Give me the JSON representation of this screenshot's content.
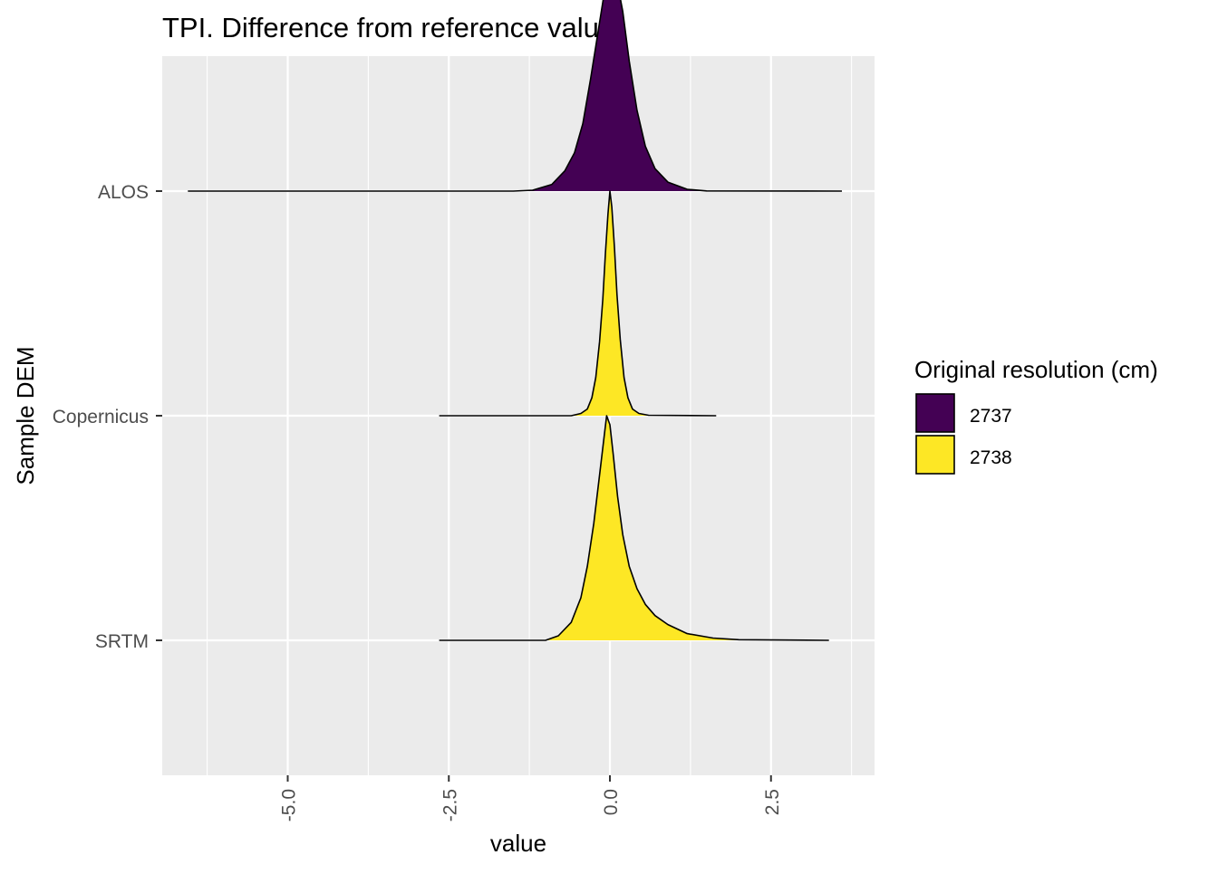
{
  "chart_data": {
    "type": "ridgeline",
    "title": "TPI. Difference from reference value",
    "xlabel": "value",
    "ylabel": "Sample DEM",
    "xlim": [
      -8.4,
      3.65
    ],
    "x_ticks": [
      -5.0,
      -2.5,
      0.0,
      2.5
    ],
    "x_tick_labels": [
      "-5.0",
      "-2.5",
      "0.0",
      "2.5"
    ],
    "x_tick_label_rotation": -90,
    "categories": [
      "ALOS",
      "Copernicus",
      "SRTM"
    ],
    "grid": true,
    "panel_background": "#ebebeb",
    "legend": {
      "title": "Original resolution (cm)",
      "placement": "right",
      "entries": [
        {
          "label": "2737",
          "color": "#440154"
        },
        {
          "label": "2738",
          "color": "#fde725"
        }
      ]
    },
    "series": [
      {
        "category": "ALOS",
        "group": "2737",
        "color": "#440154",
        "range": [
          -6.55,
          3.6
        ],
        "peak_x": 0.0,
        "density": [
          [
            -6.55,
            0
          ],
          [
            -1.5,
            0
          ],
          [
            -1.2,
            0.004
          ],
          [
            -0.9,
            0.03
          ],
          [
            -0.7,
            0.09
          ],
          [
            -0.55,
            0.17
          ],
          [
            -0.42,
            0.3
          ],
          [
            -0.3,
            0.5
          ],
          [
            -0.2,
            0.68
          ],
          [
            -0.1,
            0.86
          ],
          [
            0.0,
            1.0
          ],
          [
            0.1,
            0.95
          ],
          [
            0.2,
            0.8
          ],
          [
            0.3,
            0.58
          ],
          [
            0.42,
            0.36
          ],
          [
            0.55,
            0.2
          ],
          [
            0.7,
            0.1
          ],
          [
            0.9,
            0.04
          ],
          [
            1.2,
            0.008
          ],
          [
            1.5,
            0.001
          ],
          [
            3.6,
            0
          ]
        ]
      },
      {
        "category": "Copernicus",
        "group": "2738",
        "color": "#fde725",
        "range": [
          -2.65,
          1.65
        ],
        "peak_x": 0.0,
        "density": [
          [
            -2.65,
            0
          ],
          [
            -0.6,
            0
          ],
          [
            -0.45,
            0.01
          ],
          [
            -0.35,
            0.03
          ],
          [
            -0.28,
            0.08
          ],
          [
            -0.22,
            0.17
          ],
          [
            -0.16,
            0.33
          ],
          [
            -0.11,
            0.52
          ],
          [
            -0.07,
            0.72
          ],
          [
            -0.03,
            0.9
          ],
          [
            0.0,
            1.0
          ],
          [
            0.03,
            0.93
          ],
          [
            0.07,
            0.75
          ],
          [
            0.11,
            0.54
          ],
          [
            0.16,
            0.34
          ],
          [
            0.22,
            0.17
          ],
          [
            0.28,
            0.08
          ],
          [
            0.35,
            0.03
          ],
          [
            0.45,
            0.01
          ],
          [
            0.6,
            0.002
          ],
          [
            1.65,
            0
          ]
        ]
      },
      {
        "category": "SRTM",
        "group": "2738",
        "color": "#fde725",
        "range": [
          -2.65,
          3.4
        ],
        "peak_x": -0.05,
        "density": [
          [
            -2.65,
            0
          ],
          [
            -1.0,
            0
          ],
          [
            -0.8,
            0.02
          ],
          [
            -0.6,
            0.08
          ],
          [
            -0.45,
            0.19
          ],
          [
            -0.35,
            0.33
          ],
          [
            -0.25,
            0.52
          ],
          [
            -0.15,
            0.76
          ],
          [
            -0.08,
            0.93
          ],
          [
            -0.05,
            1.0
          ],
          [
            0.0,
            0.96
          ],
          [
            0.05,
            0.83
          ],
          [
            0.12,
            0.64
          ],
          [
            0.2,
            0.47
          ],
          [
            0.3,
            0.33
          ],
          [
            0.42,
            0.23
          ],
          [
            0.55,
            0.16
          ],
          [
            0.7,
            0.11
          ],
          [
            0.9,
            0.07
          ],
          [
            1.2,
            0.03
          ],
          [
            1.6,
            0.01
          ],
          [
            2.0,
            0.003
          ],
          [
            3.4,
            0
          ]
        ]
      }
    ]
  }
}
